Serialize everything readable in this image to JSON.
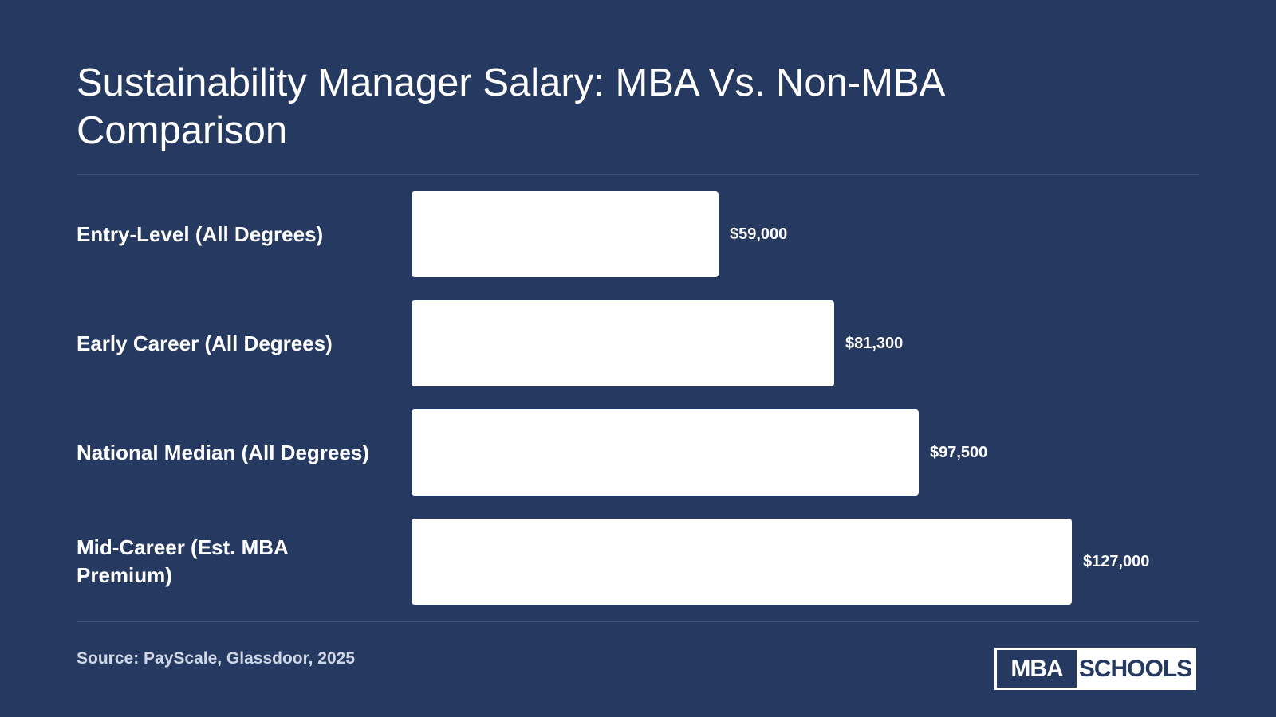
{
  "title": "Sustainability Manager Salary: MBA Vs. Non-MBA Comparison",
  "source": "Source: PayScale, Glassdoor, 2025",
  "logo": {
    "left": "MBA",
    "right": "SCHOOLS"
  },
  "colors": {
    "background": "#253961",
    "bar": "#ffffff",
    "text": "#ffffff"
  },
  "chart_data": {
    "type": "bar",
    "orientation": "horizontal",
    "title": "Sustainability Manager Salary: MBA Vs. Non-MBA Comparison",
    "categories": [
      "Entry-Level (All Degrees)",
      "Early Career (All Degrees)",
      "National Median (All Degrees)",
      "Mid-Career (Est. MBA Premium)"
    ],
    "values": [
      59000,
      81300,
      97500,
      127000
    ],
    "value_labels": [
      "$59,000",
      "$81,300",
      "$97,500",
      "$127,000"
    ],
    "xlabel": "",
    "ylabel": "",
    "xlim": [
      0,
      127000
    ],
    "grid": false,
    "legend": "none"
  }
}
